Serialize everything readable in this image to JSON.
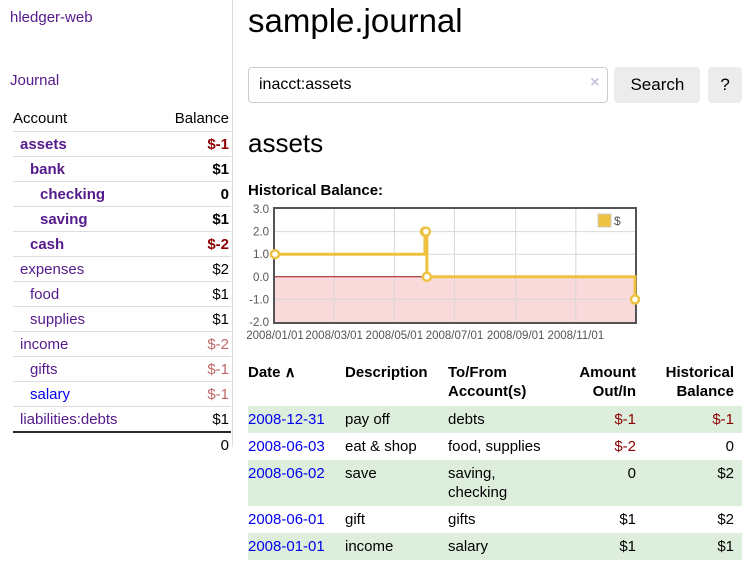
{
  "app": {
    "brand": "hledger-web"
  },
  "sidebar": {
    "nav_journal": "Journal",
    "accounts": {
      "header_account": "Account",
      "header_balance": "Balance",
      "rows": [
        {
          "name": "assets",
          "balance": "$-1",
          "indent": 1,
          "bold": true,
          "balance_style": "neg-strong",
          "link_style": "visited"
        },
        {
          "name": "bank",
          "balance": "$1",
          "indent": 2,
          "bold": true,
          "balance_style": "pos",
          "link_style": "visited"
        },
        {
          "name": "checking",
          "balance": "0",
          "indent": 3,
          "bold": true,
          "balance_style": "pos",
          "link_style": "visited"
        },
        {
          "name": "saving",
          "balance": "$1",
          "indent": 3,
          "bold": true,
          "balance_style": "pos",
          "link_style": "visited"
        },
        {
          "name": "cash",
          "balance": "$-2",
          "indent": 2,
          "bold": true,
          "balance_style": "neg-strong",
          "link_style": "visited"
        },
        {
          "name": "expenses",
          "balance": "$2",
          "indent": 1,
          "bold": false,
          "balance_style": "pos",
          "link_style": "visited"
        },
        {
          "name": "food",
          "balance": "$1",
          "indent": 2,
          "bold": false,
          "balance_style": "pos",
          "link_style": "visited"
        },
        {
          "name": "supplies",
          "balance": "$1",
          "indent": 2,
          "bold": false,
          "balance_style": "pos",
          "link_style": "visited"
        },
        {
          "name": "income",
          "balance": "$-2",
          "indent": 1,
          "bold": false,
          "balance_style": "neg-soft",
          "link_style": "visited"
        },
        {
          "name": "gifts",
          "balance": "$-1",
          "indent": 2,
          "bold": false,
          "balance_style": "neg-soft",
          "link_style": "visited"
        },
        {
          "name": "salary",
          "balance": "$-1",
          "indent": 2,
          "bold": false,
          "balance_style": "neg-soft",
          "link_style": "unvisited"
        },
        {
          "name": "liabilities:debts",
          "balance": "$1",
          "indent": 1,
          "bold": false,
          "balance_style": "pos",
          "link_style": "visited"
        }
      ],
      "total": "0"
    }
  },
  "main": {
    "title": "sample.journal",
    "search": {
      "value": "inacct:assets",
      "clear_glyph": "×",
      "button_label": "Search",
      "help_label": "?"
    },
    "account_heading": "assets",
    "chart_label": "Historical Balance:"
  },
  "chart_data": {
    "type": "line",
    "step": true,
    "title": "Historical Balance",
    "series": [
      {
        "name": "$",
        "color": "#EDC240",
        "points": [
          {
            "date": "2008-01-01",
            "value": 1
          },
          {
            "date": "2008-06-01",
            "value": 2
          },
          {
            "date": "2008-06-02",
            "value": 2
          },
          {
            "date": "2008-06-03",
            "value": 0
          },
          {
            "date": "2008-12-31",
            "value": -1
          }
        ]
      }
    ],
    "x_ticks": [
      "2008/01/01",
      "2008/03/01",
      "2008/05/01",
      "2008/07/01",
      "2008/09/01",
      "2008/11/01"
    ],
    "y_ticks": [
      "3.0",
      "2.0",
      "1.0",
      "0.0",
      "-1.0",
      "-2.0"
    ],
    "ylim": [
      -2,
      3
    ],
    "x_range": [
      "2008-01-01",
      "2008-12-31"
    ],
    "grid": true,
    "legend": {
      "label": "$",
      "position": "top-right"
    },
    "negative_region": true
  },
  "register": {
    "headers": [
      {
        "label": "Date",
        "align": "left",
        "sort_glyph": "∧"
      },
      {
        "label": "Description",
        "align": "left"
      },
      {
        "label": "To/From Account(s)",
        "align": "left"
      },
      {
        "label": "Amount Out/In",
        "align": "right"
      },
      {
        "label": "Historical Balance",
        "align": "right"
      }
    ],
    "rows": [
      {
        "date": "2008-12-31",
        "description": "pay off",
        "accounts": "debts",
        "amount": "$-1",
        "balance": "$-1"
      },
      {
        "date": "2008-06-03",
        "description": "eat & shop",
        "accounts": "food, supplies",
        "amount": "$-2",
        "balance": "0"
      },
      {
        "date": "2008-06-02",
        "description": "save",
        "accounts": "saving, checking",
        "amount": "0",
        "balance": "$2"
      },
      {
        "date": "2008-06-01",
        "description": "gift",
        "accounts": "gifts",
        "amount": "$1",
        "balance": "$2"
      },
      {
        "date": "2008-01-01",
        "description": "income",
        "accounts": "salary",
        "amount": "$1",
        "balance": "$1"
      }
    ]
  },
  "colors": {
    "link_visited": "#551A8B",
    "link_unvisited": "#0000EE",
    "negative_strong": "#8B0000",
    "negative_soft": "#C06868",
    "row_stripe": "#DDEEDD",
    "chart_series": "#EDC240",
    "chart_negative_region": "#F9D9D9",
    "chart_zero_line": "#991111",
    "chart_grid": "#D8D8D8",
    "chart_border": "#545454"
  }
}
